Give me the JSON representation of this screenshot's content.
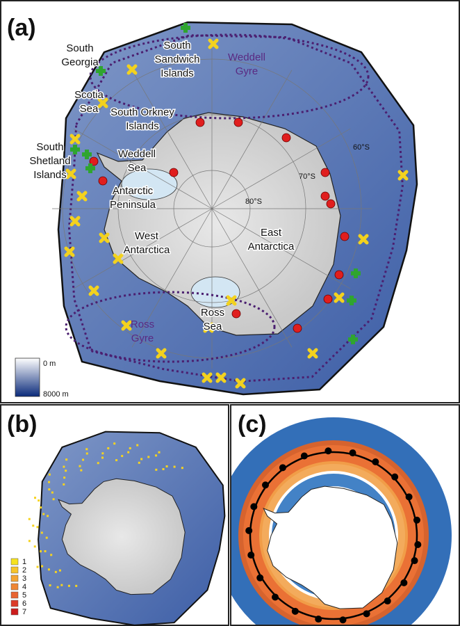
{
  "panels": [
    {
      "tag": "(a)",
      "labels": [
        {
          "lines": [
            "South",
            "Georgia"
          ]
        },
        {
          "lines": [
            "South",
            "Sandwich",
            "Islands"
          ]
        },
        {
          "lines": [
            "Weddell",
            "Gyre"
          ]
        },
        {
          "lines": [
            "Scotia",
            "Sea"
          ]
        },
        {
          "lines": [
            "South Orkney",
            "Islands"
          ]
        },
        {
          "lines": [
            "South",
            "Shetland",
            "Islands"
          ]
        },
        {
          "lines": [
            "Weddell",
            "Sea"
          ]
        },
        {
          "lines": [
            "Antarctic",
            "Peninsula"
          ]
        },
        {
          "lines": [
            "West",
            "Antarctica"
          ]
        },
        {
          "lines": [
            "East",
            "Antarctica"
          ]
        },
        {
          "lines": [
            "Ross",
            "Sea"
          ]
        },
        {
          "lines": [
            "Ross",
            "Gyre"
          ]
        }
      ],
      "latitudes": [
        "60°S",
        "70°S",
        "80°S"
      ],
      "depth_legend": [
        "0 m",
        "8000 m"
      ]
    },
    {
      "tag": "(b)",
      "legend": [
        "1",
        "2",
        "3",
        "4",
        "5",
        "6",
        "7"
      ]
    },
    {
      "tag": "(c)"
    }
  ]
}
